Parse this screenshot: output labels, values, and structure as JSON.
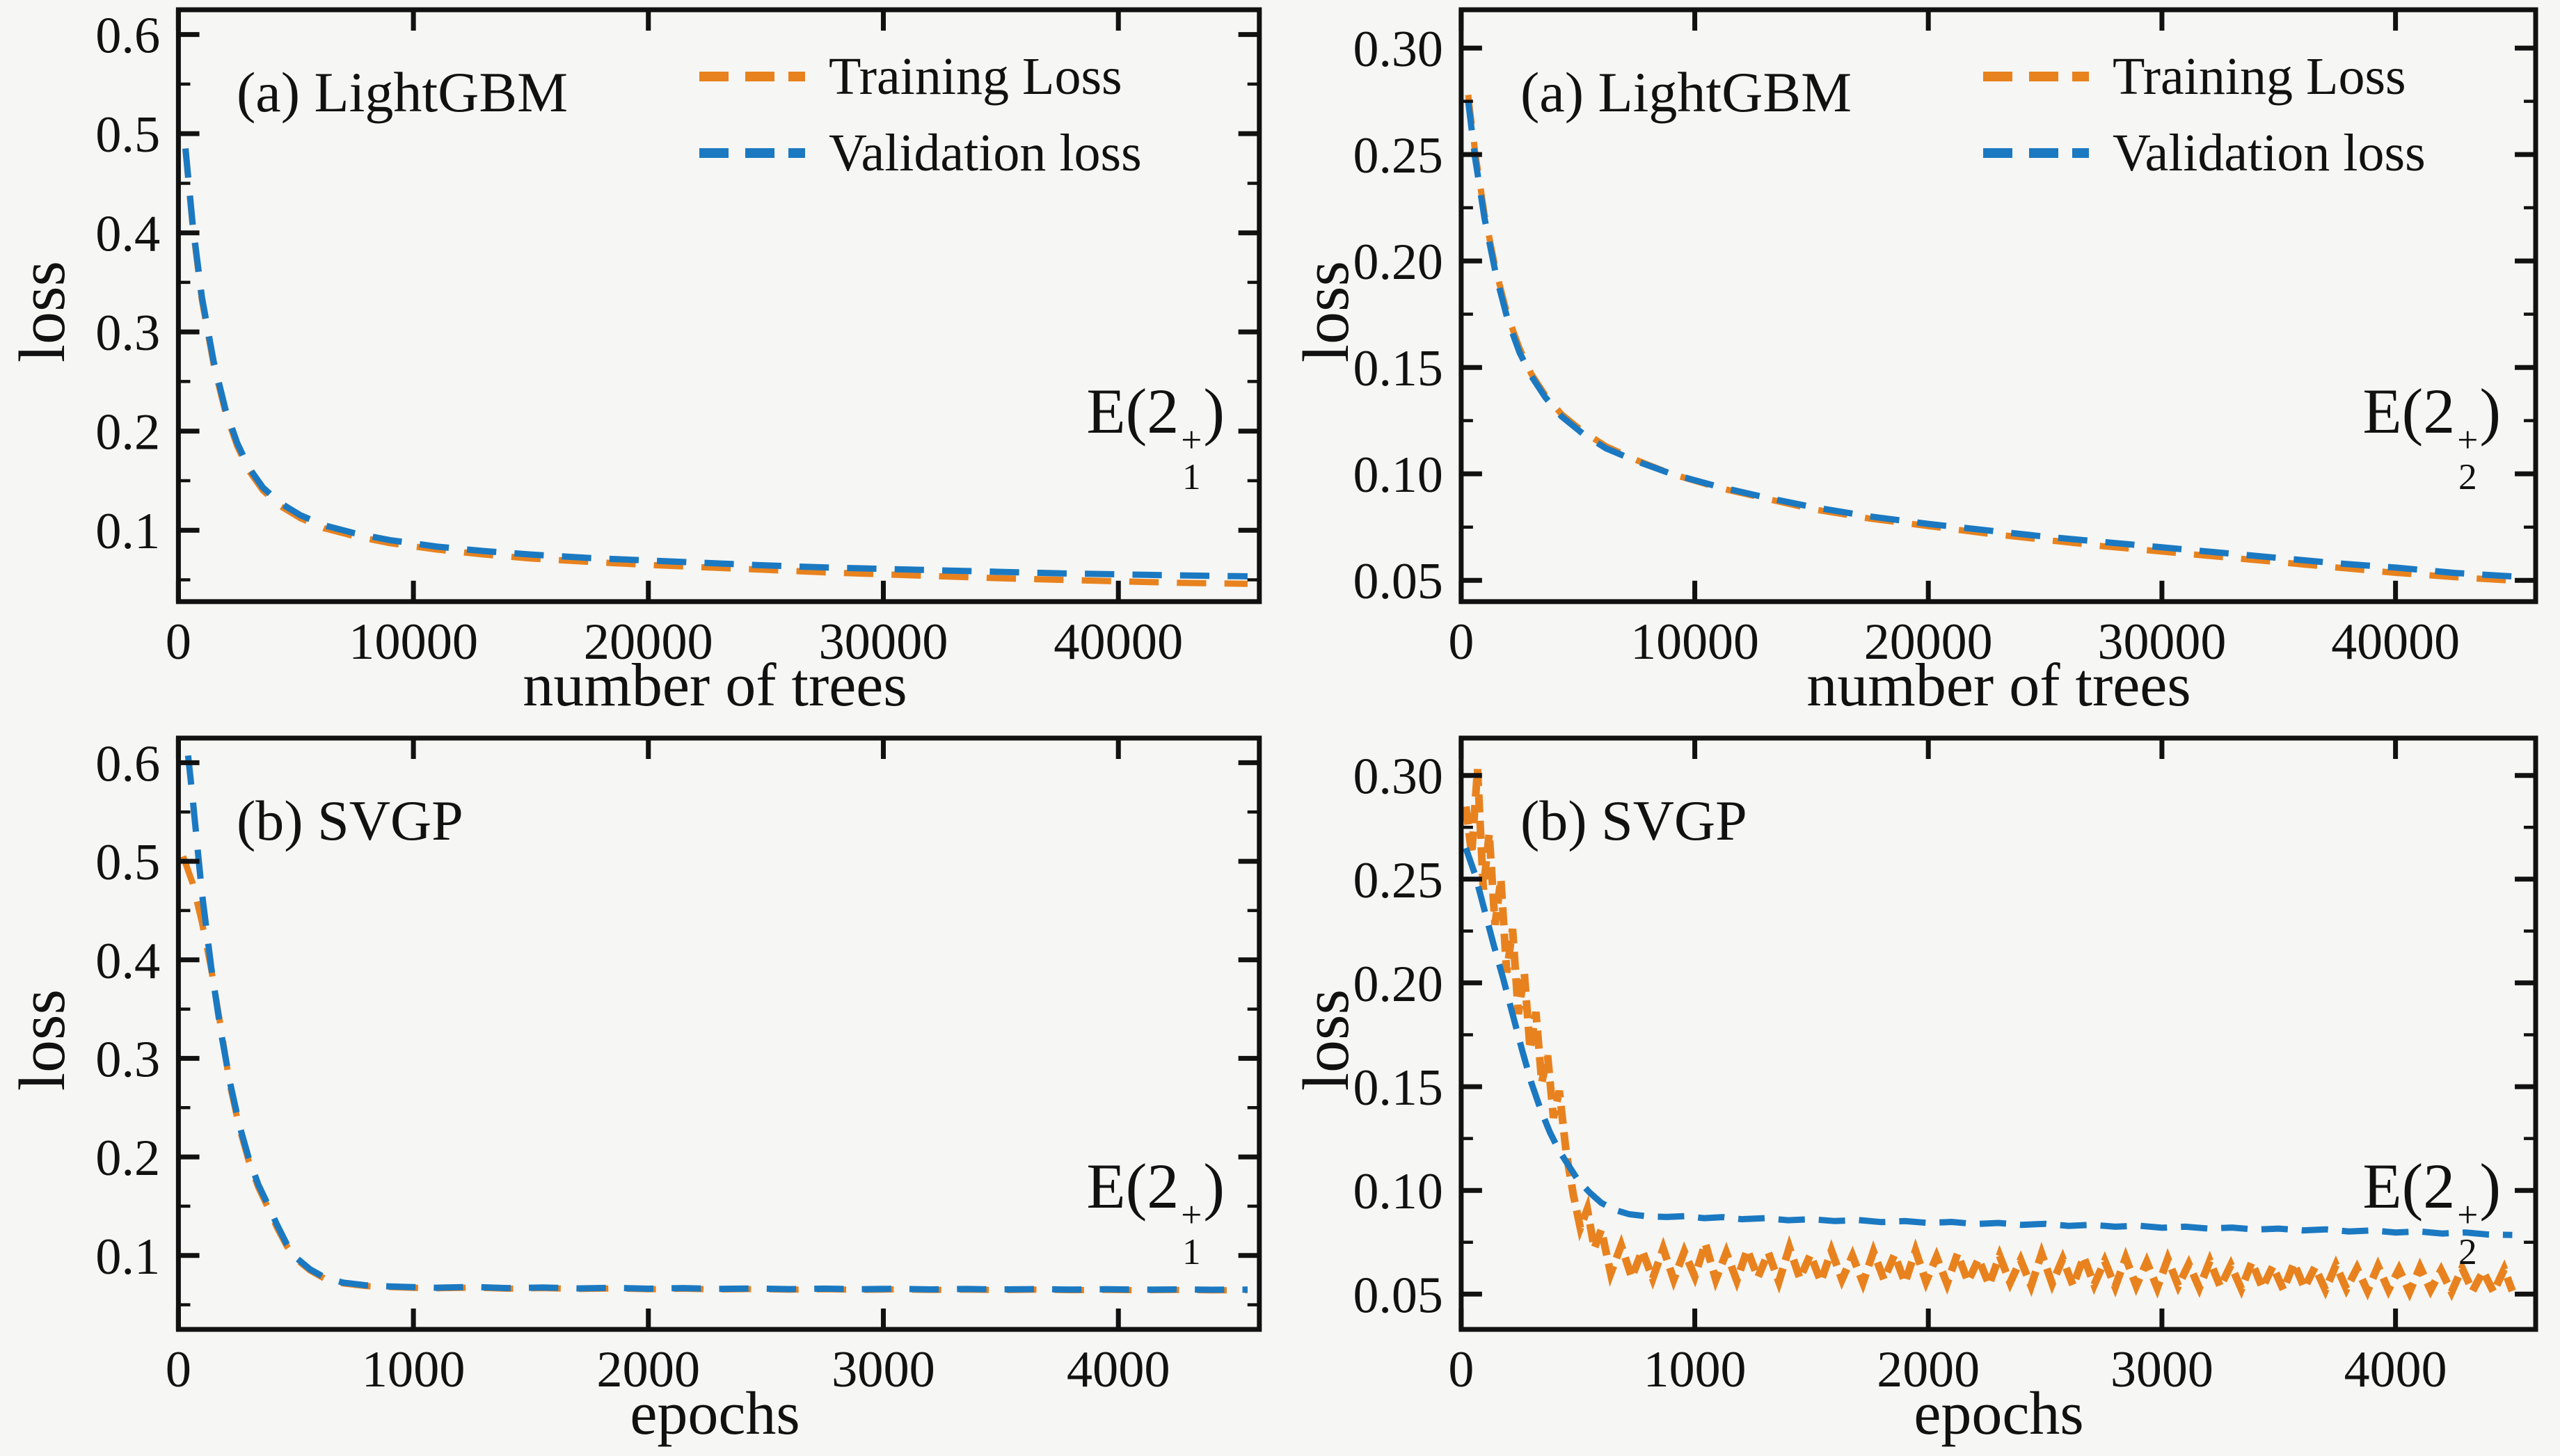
{
  "colors": {
    "training": "#e8821e",
    "validation": "#1b79c2",
    "axis": "#111111",
    "background": "#f6f6f4"
  },
  "legend": {
    "training_label": "Training Loss",
    "validation_label": "Validation loss"
  },
  "chart_data": [
    {
      "id": "lightgbm-e21",
      "type": "line",
      "title": "(a) LightGBM",
      "annotation": {
        "prefix": "E(2",
        "sup": "+",
        "sub": "1",
        "suffix": ")"
      },
      "xlabel": "number of trees",
      "ylabel": "loss",
      "xlim": [
        0,
        46000
      ],
      "ylim": [
        0.028,
        0.625
      ],
      "xticks": [
        0,
        10000,
        20000,
        30000,
        40000
      ],
      "yticks": [
        0.1,
        0.2,
        0.3,
        0.4,
        0.5,
        0.6
      ],
      "ydecimals": 1,
      "legend_position": "upper right inside",
      "grid": false,
      "series": [
        {
          "name": "Training Loss",
          "color": "training",
          "width": 9,
          "dasharray": "42 26",
          "x": [
            300,
            600,
            1000,
            1500,
            2000,
            2500,
            3000,
            3600,
            4300,
            5200,
            6200,
            7500,
            9000,
            11000,
            13000,
            15000,
            17500,
            20000,
            22500,
            25000,
            27500,
            30000,
            32500,
            35000,
            37500,
            40000,
            42500,
            45500
          ],
          "y": [
            0.485,
            0.408,
            0.332,
            0.267,
            0.219,
            0.185,
            0.16,
            0.14,
            0.125,
            0.112,
            0.102,
            0.094,
            0.087,
            0.0805,
            0.0755,
            0.0715,
            0.068,
            0.065,
            0.0625,
            0.06,
            0.0575,
            0.0555,
            0.0535,
            0.0515,
            0.05,
            0.0485,
            0.047,
            0.046
          ]
        },
        {
          "name": "Validation loss",
          "color": "validation",
          "width": 9,
          "dasharray": "42 26",
          "x": [
            300,
            600,
            1000,
            1500,
            2000,
            2500,
            3000,
            3600,
            4300,
            5200,
            6200,
            7500,
            9000,
            11000,
            13000,
            15000,
            17500,
            20000,
            22500,
            25000,
            27500,
            30000,
            32500,
            35000,
            37500,
            40000,
            42500,
            45500
          ],
          "y": [
            0.485,
            0.41,
            0.335,
            0.27,
            0.222,
            0.188,
            0.163,
            0.143,
            0.128,
            0.115,
            0.105,
            0.097,
            0.09,
            0.0835,
            0.079,
            0.0755,
            0.072,
            0.0695,
            0.067,
            0.0645,
            0.0625,
            0.061,
            0.0595,
            0.058,
            0.0565,
            0.0555,
            0.0545,
            0.0535
          ]
        }
      ]
    },
    {
      "id": "lightgbm-e22",
      "type": "line",
      "title": "(a) LightGBM",
      "annotation": {
        "prefix": "E(2",
        "sup": "+",
        "sub": "2",
        "suffix": ")"
      },
      "xlabel": "number of trees",
      "ylabel": "loss",
      "xlim": [
        0,
        46000
      ],
      "ylim": [
        0.04,
        0.318
      ],
      "xticks": [
        0,
        10000,
        20000,
        30000,
        40000
      ],
      "yticks": [
        0.05,
        0.1,
        0.15,
        0.2,
        0.25,
        0.3
      ],
      "ydecimals": 2,
      "legend_position": "upper right inside",
      "grid": false,
      "series": [
        {
          "name": "Training Loss",
          "color": "training",
          "width": 9,
          "dasharray": "42 26",
          "x": [
            300,
            600,
            1000,
            1500,
            2000,
            2500,
            3000,
            3600,
            4300,
            5200,
            6200,
            7500,
            9000,
            11000,
            13000,
            15000,
            17500,
            20000,
            22500,
            25000,
            27500,
            30000,
            32500,
            35000,
            37500,
            40000,
            42500,
            45500
          ],
          "y": [
            0.278,
            0.251,
            0.222,
            0.195,
            0.174,
            0.159,
            0.147,
            0.137,
            0.128,
            0.12,
            0.113,
            0.1065,
            0.1,
            0.0935,
            0.0885,
            0.0835,
            0.079,
            0.0755,
            0.072,
            0.069,
            0.066,
            0.0635,
            0.061,
            0.0585,
            0.056,
            0.0535,
            0.0515,
            0.0495
          ]
        },
        {
          "name": "Validation loss",
          "color": "validation",
          "width": 9,
          "dasharray": "42 26",
          "x": [
            300,
            600,
            1000,
            1500,
            2000,
            2500,
            3000,
            3600,
            4300,
            5200,
            6200,
            7500,
            9000,
            11000,
            13000,
            15000,
            17500,
            20000,
            22500,
            25000,
            27500,
            30000,
            32500,
            35000,
            37500,
            40000,
            42500,
            45500
          ],
          "y": [
            0.275,
            0.248,
            0.22,
            0.193,
            0.172,
            0.157,
            0.146,
            0.136,
            0.127,
            0.119,
            0.112,
            0.106,
            0.1,
            0.094,
            0.089,
            0.0845,
            0.08,
            0.0765,
            0.0735,
            0.0705,
            0.068,
            0.0655,
            0.063,
            0.0605,
            0.058,
            0.056,
            0.0535,
            0.0515
          ]
        }
      ]
    },
    {
      "id": "svgp-e21",
      "type": "line",
      "title": "(b) SVGP",
      "annotation": {
        "prefix": "E(2",
        "sup": "+",
        "sub": "1",
        "suffix": ")"
      },
      "xlabel": "epochs",
      "ylabel": "loss",
      "xlim": [
        0,
        4600
      ],
      "ylim": [
        0.025,
        0.625
      ],
      "xticks": [
        0,
        1000,
        2000,
        3000,
        4000
      ],
      "yticks": [
        0.1,
        0.2,
        0.3,
        0.4,
        0.5,
        0.6
      ],
      "ydecimals": 1,
      "legend_position": "none",
      "grid": false,
      "series": [
        {
          "name": "Training Loss",
          "color": "training",
          "width": 9,
          "dasharray": "42 26",
          "x": [
            20,
            60,
            100,
            140,
            180,
            220,
            260,
            300,
            340,
            380,
            420,
            460,
            500,
            560,
            620,
            700,
            800,
            900,
            1000,
            1100,
            1250,
            1400,
            1550,
            1700,
            1850,
            2000,
            2150,
            2300,
            2450,
            2600,
            2750,
            2900,
            3050,
            3200,
            3350,
            3500,
            3650,
            3800,
            3950,
            4100,
            4250,
            4400,
            4550
          ],
          "y": [
            0.505,
            0.478,
            0.438,
            0.39,
            0.332,
            0.272,
            0.229,
            0.195,
            0.169,
            0.149,
            0.128,
            0.11,
            0.0965,
            0.0848,
            0.0768,
            0.0716,
            0.069,
            0.068,
            0.0672,
            0.0667,
            0.0674,
            0.0663,
            0.0669,
            0.066,
            0.0666,
            0.0657,
            0.0663,
            0.0655,
            0.066,
            0.0653,
            0.0658,
            0.0651,
            0.0656,
            0.065,
            0.0654,
            0.0649,
            0.0653,
            0.0648,
            0.0651,
            0.0647,
            0.065,
            0.0646,
            0.0648
          ]
        },
        {
          "name": "Validation loss",
          "color": "validation",
          "width": 9,
          "dasharray": "42 26",
          "x": [
            20,
            60,
            100,
            140,
            180,
            220,
            260,
            300,
            340,
            380,
            420,
            460,
            500,
            560,
            620,
            700,
            800,
            900,
            1000,
            1100,
            1250,
            1400,
            1550,
            1700,
            1850,
            2000,
            2150,
            2300,
            2450,
            2600,
            2750,
            2900,
            3050,
            3200,
            3350,
            3500,
            3650,
            3800,
            3950,
            4100,
            4250,
            4400,
            4550
          ],
          "y": [
            0.655,
            0.565,
            0.468,
            0.392,
            0.328,
            0.275,
            0.232,
            0.198,
            0.172,
            0.152,
            0.131,
            0.112,
            0.098,
            0.086,
            0.078,
            0.0725,
            0.0697,
            0.0686,
            0.0679,
            0.0673,
            0.0681,
            0.0669,
            0.0675,
            0.0666,
            0.0672,
            0.0663,
            0.0669,
            0.0661,
            0.0666,
            0.0659,
            0.0664,
            0.0657,
            0.0662,
            0.0656,
            0.066,
            0.0655,
            0.0659,
            0.0654,
            0.0657,
            0.0653,
            0.0656,
            0.0652,
            0.0654
          ]
        }
      ]
    },
    {
      "id": "svgp-e22",
      "type": "line",
      "title": "(b) SVGP",
      "annotation": {
        "prefix": "E(2",
        "sup": "+",
        "sub": "2",
        "suffix": ")"
      },
      "xlabel": "epochs",
      "ylabel": "loss",
      "xlim": [
        0,
        4600
      ],
      "ylim": [
        0.033,
        0.318
      ],
      "xticks": [
        0,
        1000,
        2000,
        3000,
        4000
      ],
      "yticks": [
        0.05,
        0.1,
        0.15,
        0.2,
        0.25,
        0.3
      ],
      "ydecimals": 2,
      "legend_position": "none",
      "grid": false,
      "series": [
        {
          "name": "Training Loss",
          "color": "training",
          "width": 11,
          "dasharray": "26 12",
          "x": [
            20,
            45,
            70,
            95,
            120,
            145,
            170,
            195,
            220,
            245,
            270,
            295,
            320,
            345,
            370,
            395,
            420,
            450,
            480,
            510,
            540,
            570,
            600,
            640,
            685,
            730,
            775,
            820,
            865,
            910,
            955,
            1000,
            1045,
            1090,
            1135,
            1180,
            1225,
            1270,
            1315,
            1360,
            1405,
            1450,
            1495,
            1540,
            1585,
            1630,
            1675,
            1720,
            1765,
            1810,
            1855,
            1900,
            1945,
            1990,
            2035,
            2080,
            2125,
            2170,
            2215,
            2260,
            2305,
            2350,
            2395,
            2440,
            2485,
            2530,
            2575,
            2620,
            2665,
            2710,
            2755,
            2800,
            2845,
            2890,
            2935,
            2980,
            3025,
            3070,
            3115,
            3160,
            3205,
            3250,
            3295,
            3340,
            3385,
            3430,
            3475,
            3520,
            3565,
            3610,
            3655,
            3700,
            3745,
            3790,
            3835,
            3880,
            3925,
            3970,
            4015,
            4060,
            4105,
            4150,
            4195,
            4240,
            4285,
            4330,
            4375,
            4420,
            4465,
            4500
          ],
          "y": [
            0.285,
            0.262,
            0.303,
            0.245,
            0.272,
            0.228,
            0.25,
            0.205,
            0.226,
            0.185,
            0.205,
            0.168,
            0.186,
            0.152,
            0.165,
            0.135,
            0.148,
            0.118,
            0.098,
            0.082,
            0.091,
            0.072,
            0.081,
            0.06,
            0.0735,
            0.058,
            0.071,
            0.0575,
            0.072,
            0.057,
            0.0705,
            0.0585,
            0.0745,
            0.057,
            0.07,
            0.0565,
            0.0715,
            0.058,
            0.07,
            0.056,
            0.0725,
            0.0575,
            0.069,
            0.056,
            0.071,
            0.057,
            0.0685,
            0.0555,
            0.0705,
            0.057,
            0.069,
            0.0555,
            0.071,
            0.056,
            0.068,
            0.055,
            0.0695,
            0.056,
            0.067,
            0.0545,
            0.0685,
            0.0555,
            0.0665,
            0.054,
            0.0695,
            0.055,
            0.067,
            0.054,
            0.068,
            0.0545,
            0.066,
            0.0535,
            0.0675,
            0.054,
            0.0655,
            0.053,
            0.067,
            0.054,
            0.0645,
            0.053,
            0.066,
            0.0535,
            0.064,
            0.0525,
            0.0655,
            0.053,
            0.0635,
            0.052,
            0.065,
            0.053,
            0.063,
            0.052,
            0.064,
            0.0525,
            0.0625,
            0.0515,
            0.0635,
            0.052,
            0.062,
            0.051,
            0.063,
            0.052,
            0.0615,
            0.051,
            0.0625,
            0.0515,
            0.061,
            0.051,
            0.062,
            0.0515
          ]
        },
        {
          "name": "Validation loss",
          "color": "validation",
          "width": 9,
          "dasharray": "38 20",
          "x": [
            20,
            60,
            100,
            140,
            180,
            220,
            260,
            300,
            340,
            380,
            420,
            460,
            500,
            550,
            600,
            660,
            720,
            800,
            880,
            960,
            1040,
            1120,
            1200,
            1300,
            1400,
            1500,
            1600,
            1700,
            1800,
            1900,
            2000,
            2100,
            2200,
            2300,
            2400,
            2500,
            2600,
            2700,
            2800,
            2900,
            3000,
            3100,
            3200,
            3300,
            3400,
            3500,
            3600,
            3700,
            3800,
            3900,
            4000,
            4100,
            4200,
            4300,
            4400,
            4500
          ],
          "y": [
            0.265,
            0.252,
            0.235,
            0.218,
            0.202,
            0.185,
            0.168,
            0.152,
            0.139,
            0.128,
            0.119,
            0.112,
            0.105,
            0.099,
            0.094,
            0.0905,
            0.0885,
            0.0875,
            0.0872,
            0.0876,
            0.0866,
            0.0871,
            0.0861,
            0.0866,
            0.0856,
            0.0861,
            0.0852,
            0.0857,
            0.0847,
            0.0852,
            0.0843,
            0.0848,
            0.0838,
            0.0843,
            0.0834,
            0.0839,
            0.0829,
            0.0834,
            0.0825,
            0.083,
            0.082,
            0.0825,
            0.0816,
            0.0821,
            0.0811,
            0.0816,
            0.0807,
            0.0812,
            0.0802,
            0.0807,
            0.0797,
            0.0802,
            0.0792,
            0.0797,
            0.0787,
            0.0785
          ]
        }
      ]
    }
  ]
}
